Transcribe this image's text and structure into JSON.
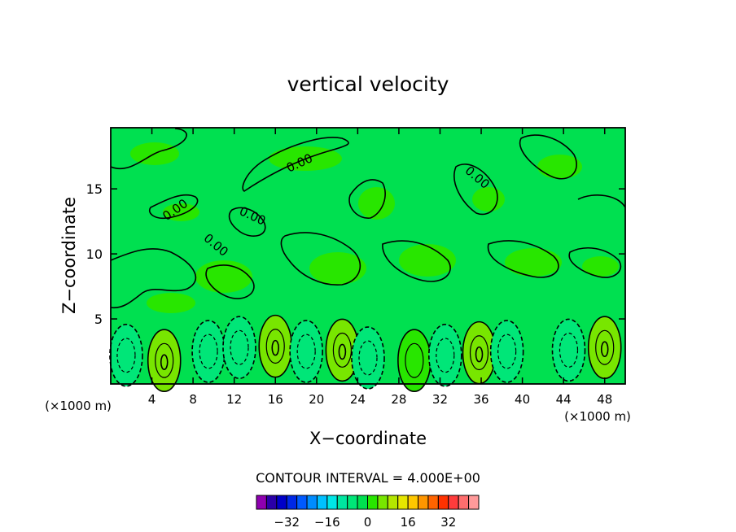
{
  "chart_data": {
    "type": "heatmap",
    "title": "vertical velocity",
    "xlabel": "X−coordinate",
    "ylabel": "Z−coordinate",
    "x_unit_left": "(×1000 m)",
    "x_unit_right": "(×1000 m)",
    "xlim": [
      0,
      50
    ],
    "ylim": [
      0,
      19.7
    ],
    "x_ticks": [
      4,
      8,
      12,
      16,
      20,
      24,
      28,
      32,
      36,
      40,
      44,
      48
    ],
    "y_ticks": [
      5,
      10,
      15
    ],
    "contour_labels": [
      "0.00",
      "0.00",
      "0.00",
      "0.00",
      "0.00",
      "0.00",
      "0.00"
    ],
    "contour_interval_text": "CONTOUR INTERVAL = 4.000E+00",
    "contour_interval": 4.0,
    "colorbar": {
      "tick_labels": [
        "−32",
        "−16",
        "0",
        "16",
        "32"
      ],
      "tick_values": [
        -32,
        -16,
        0,
        16,
        32
      ],
      "colors": [
        "#8e00b0",
        "#2a00a8",
        "#0000c8",
        "#0028e6",
        "#005aff",
        "#008cff",
        "#00c0ff",
        "#00e6e6",
        "#00e6a0",
        "#00e678",
        "#00e050",
        "#28e600",
        "#78e600",
        "#b4e600",
        "#e6e600",
        "#ffc800",
        "#ff9600",
        "#ff6400",
        "#ff3200",
        "#ff3c3c",
        "#ff6e6e",
        "#ff9a9a"
      ]
    },
    "cells": [
      {
        "x": 1.5,
        "z": 2.2,
        "w": -6
      },
      {
        "x": 5.2,
        "z": 1.8,
        "w": 10
      },
      {
        "x": 9.5,
        "z": 2.5,
        "w": -4
      },
      {
        "x": 12.5,
        "z": 2.8,
        "w": -5
      },
      {
        "x": 16.0,
        "z": 2.9,
        "w": 12
      },
      {
        "x": 19.0,
        "z": 2.5,
        "w": -4
      },
      {
        "x": 22.5,
        "z": 2.6,
        "w": 10
      },
      {
        "x": 25.0,
        "z": 2.0,
        "w": -6
      },
      {
        "x": 29.5,
        "z": 1.8,
        "w": 6
      },
      {
        "x": 32.5,
        "z": 2.2,
        "w": -3
      },
      {
        "x": 35.8,
        "z": 2.4,
        "w": 10
      },
      {
        "x": 38.5,
        "z": 2.5,
        "w": -4
      },
      {
        "x": 44.5,
        "z": 2.6,
        "w": -5
      },
      {
        "x": 48.0,
        "z": 2.8,
        "w": 10
      }
    ],
    "colors": {
      "background_field": "#00e050",
      "positive_fill": "#28e600",
      "strong_positive_fill": "#78e600",
      "negative_fill": "#00e678",
      "strong_negative_fill": "#00e6a0"
    }
  }
}
